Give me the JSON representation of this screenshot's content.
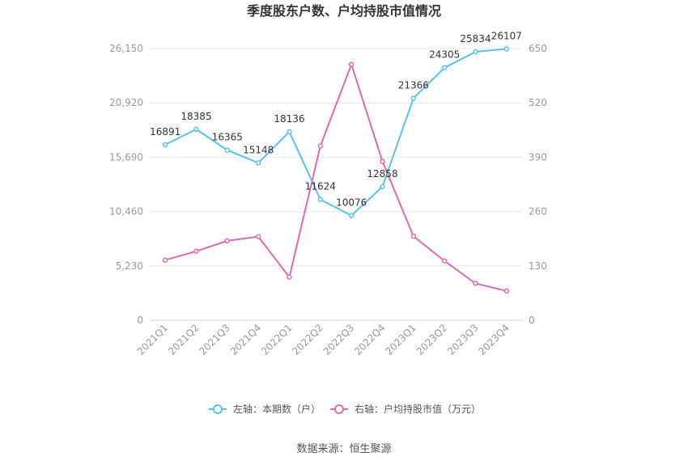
{
  "chart_data": {
    "type": "line",
    "title": "季度股东户数、户均持股市值情况",
    "categories": [
      "2021Q1",
      "2021Q2",
      "2021Q3",
      "2021Q4",
      "2022Q1",
      "2022Q2",
      "2022Q3",
      "2022Q4",
      "2023Q1",
      "2023Q2",
      "2023Q3",
      "2023Q4"
    ],
    "left_axis": {
      "ticks": [
        "0",
        "5,230",
        "10,460",
        "15,690",
        "20,920",
        "26,150"
      ],
      "min": 0,
      "max": 26150
    },
    "right_axis": {
      "ticks": [
        "0",
        "130",
        "260",
        "390",
        "520",
        "650"
      ],
      "min": 0,
      "max": 650
    },
    "series": [
      {
        "name": "左轴：本期数（户）",
        "axis": "left",
        "color": "#5bc0eb",
        "values": [
          16891,
          18385,
          16365,
          15148,
          18136,
          11624,
          10076,
          12858,
          21366,
          24305,
          25834,
          26107
        ],
        "labels": [
          "16891",
          "18385",
          "16365",
          "15148",
          "18136",
          "11624",
          "10076",
          "12858",
          "21366",
          "24305",
          "25834",
          "26107"
        ]
      },
      {
        "name": "右轴：户均持股市值（万元）",
        "axis": "right",
        "color": "#d96bb5",
        "values": [
          144,
          165,
          190,
          200,
          103,
          417,
          612,
          380,
          201,
          142,
          88,
          70
        ]
      }
    ],
    "grid": true,
    "legend_position": "bottom"
  },
  "source": "数据来源：恒生聚源"
}
